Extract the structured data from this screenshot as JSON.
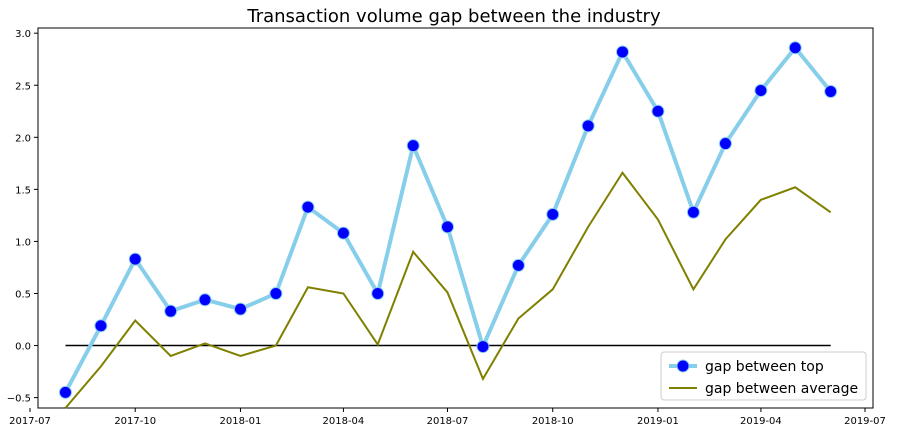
{
  "chart_data": {
    "type": "line",
    "title": "Transaction volume gap between the industry",
    "xlabel": "",
    "ylabel": "",
    "x_dates": [
      "2017-08",
      "2017-09",
      "2017-10",
      "2017-11",
      "2017-12",
      "2018-01",
      "2018-02",
      "2018-03",
      "2018-04",
      "2018-05",
      "2018-06",
      "2018-07",
      "2018-08",
      "2018-09",
      "2018-10",
      "2018-11",
      "2018-12",
      "2019-01",
      "2019-02",
      "2019-03",
      "2019-04",
      "2019-05",
      "2019-06"
    ],
    "xlim": [
      "2017-07-08",
      "2019-07-08"
    ],
    "ylim": [
      -0.6,
      3.05
    ],
    "x_ticks": [
      "2017-07",
      "2017-10",
      "2018-01",
      "2018-04",
      "2018-07",
      "2018-10",
      "2019-01",
      "2019-04",
      "2019-07"
    ],
    "y_ticks": [
      -0.5,
      0.0,
      0.5,
      1.0,
      1.5,
      2.0,
      2.5,
      3.0
    ],
    "y_tick_labels": [
      "−0.5",
      "0.0",
      "0.5",
      "1.0",
      "1.5",
      "2.0",
      "2.5",
      "3.0"
    ],
    "grid": false,
    "legend_position": "bottom-right",
    "zero_line": {
      "value": 0.0,
      "color": "#000000"
    },
    "series": [
      {
        "name": "gap between top",
        "line_color": "#87ceeb",
        "marker_color": "#0000ff",
        "marker": "circle",
        "values": [
          -0.45,
          0.19,
          0.83,
          0.33,
          0.44,
          0.35,
          0.5,
          1.33,
          1.08,
          0.5,
          1.92,
          1.14,
          -0.01,
          0.77,
          1.26,
          2.11,
          2.82,
          2.25,
          1.28,
          1.94,
          2.45,
          2.86,
          2.44
        ]
      },
      {
        "name": "gap between average",
        "line_color": "#808000",
        "marker": "none",
        "values": [
          -0.6,
          -0.2,
          0.24,
          -0.1,
          0.02,
          -0.1,
          0.0,
          0.56,
          0.5,
          0.01,
          0.9,
          0.51,
          -0.32,
          0.26,
          0.54,
          1.14,
          1.66,
          1.21,
          0.54,
          1.02,
          1.4,
          1.52,
          1.28
        ]
      }
    ]
  }
}
